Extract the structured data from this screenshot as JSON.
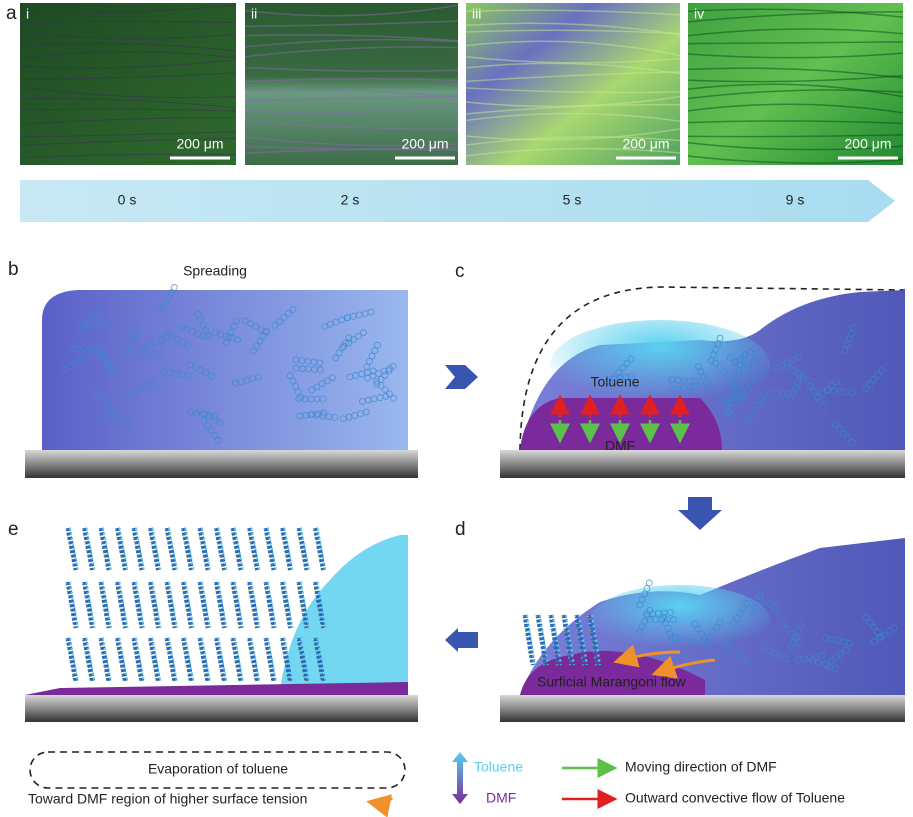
{
  "panel_a": {
    "label": "a",
    "images": [
      {
        "label": "i",
        "scale_bar": "200 μm"
      },
      {
        "label": "ii",
        "scale_bar": "200 μm"
      },
      {
        "label": "iii",
        "scale_bar": "200 μm"
      },
      {
        "label": "iv",
        "scale_bar": "200 μm"
      }
    ],
    "times": [
      "0 s",
      "2 s",
      "5 s",
      "9 s"
    ]
  },
  "panel_b": {
    "label": "b",
    "title": "Spreading"
  },
  "panel_c": {
    "label": "c",
    "upper_phase": "Toluene",
    "lower_phase": "DMF"
  },
  "panel_d": {
    "label": "d",
    "flow": "Surficial Marangoni flow"
  },
  "panel_e": {
    "label": "e"
  },
  "legend": {
    "evaporation": "Evaporation of toluene",
    "toward_dmf": "Toward DMF region of higher surface tension",
    "toluene": "Toluene",
    "dmf": "DMF",
    "dmf_direction": "Moving direction of DMF",
    "toluene_flow": "Outward convective flow of Toluene"
  }
}
